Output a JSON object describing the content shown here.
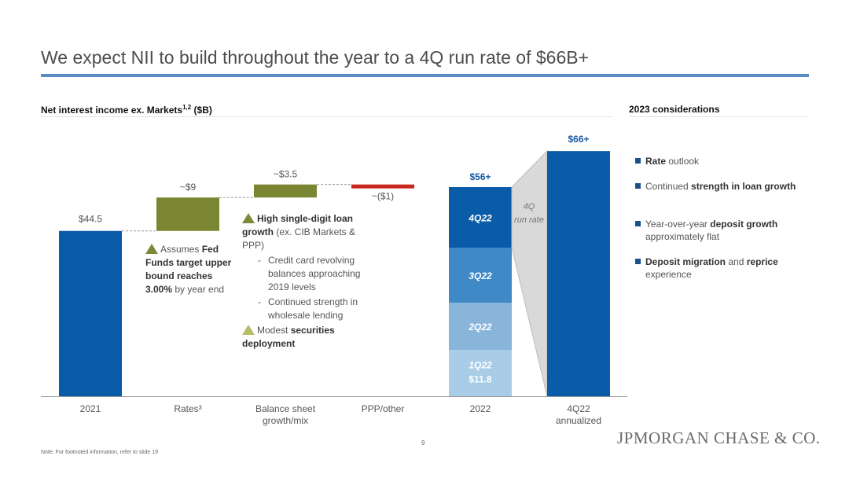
{
  "slide": {
    "title": "We expect NII to build throughout the year to a 4Q run rate of $66B+",
    "left_header": "Net interest income ex. Markets",
    "left_header_sup": "1,2",
    "left_header_unit": " ($B)",
    "right_header": "2023 considerations",
    "footnote": "Note: For footnoted information, refer to slide 19",
    "page_number": "9",
    "logo": "JPMORGAN CHASE & CO."
  },
  "considerations": [
    {
      "parts": [
        {
          "b": "Rate"
        },
        {
          "t": " outlook"
        }
      ]
    },
    {
      "parts": [
        {
          "t": "Continued "
        },
        {
          "b": "strength in loan growth"
        }
      ]
    },
    {
      "parts": [
        {
          "t": "Year-over-year "
        },
        {
          "b": "deposit growth"
        },
        {
          "t": " approximately flat"
        }
      ]
    },
    {
      "parts": [
        {
          "b": "Deposit migration"
        },
        {
          "t": " and "
        },
        {
          "b": "reprice"
        },
        {
          "t": " experience"
        }
      ]
    }
  ],
  "annotations": {
    "rates": {
      "pre": "Assumes ",
      "bold": "Fed Funds target upper bound reaches 3.00%",
      "post": " by year end"
    },
    "balance": {
      "main_bold": "High single-digit loan growth",
      "main_post": " (ex. CIB Markets & PPP)",
      "sub": [
        "Credit card revolving balances approaching 2019 levels",
        "Continued strength in wholesale lending"
      ],
      "second_pre": "Modest ",
      "second_bold": "securities deployment"
    }
  },
  "chart_data": {
    "type": "waterfall",
    "unit": "$B",
    "categories": [
      "2021",
      "Rates³",
      "Balance sheet growth/mix",
      "PPP/other",
      "2022",
      "4Q22 annualized"
    ],
    "steps": [
      {
        "category": "2021",
        "kind": "total",
        "value": 44.5,
        "label": "$44.5",
        "color": "#0a5ca8"
      },
      {
        "category": "Rates³",
        "kind": "increase",
        "value": 9,
        "label": "~$9",
        "color": "#7b8632"
      },
      {
        "category": "Balance sheet growth/mix",
        "kind": "increase",
        "value": 3.5,
        "label": "~$3.5",
        "color": "#7b8632"
      },
      {
        "category": "PPP/other",
        "kind": "decrease",
        "value": -1,
        "label": "~($1)",
        "color": "#c8281e"
      },
      {
        "category": "2022",
        "kind": "stacked_total",
        "total_label": "$56+",
        "segments": [
          {
            "name": "1Q22",
            "value": 11.8,
            "value_label": "$11.8",
            "color": "#a9cde6"
          },
          {
            "name": "2Q22",
            "value": 13.2,
            "color": "#8ab5db"
          },
          {
            "name": "3Q22",
            "value": 14.9,
            "color": "#3f89c6"
          },
          {
            "name": "4Q22",
            "value": 16.5,
            "color": "#0a5ca8"
          }
        ]
      },
      {
        "category": "4Q22 annualized",
        "kind": "total",
        "value": 66,
        "label": "$66+",
        "color": "#0a5ca8"
      }
    ],
    "callout": "4Q run rate",
    "value_label_color": "#1a5aa0",
    "ylim": [
      0,
      70
    ]
  }
}
